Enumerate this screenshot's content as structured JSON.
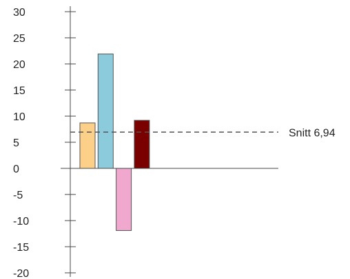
{
  "chart_data": {
    "type": "bar",
    "categories": [
      "",
      "",
      "",
      ""
    ],
    "values": [
      8.7,
      21.9,
      -11.9,
      9.2
    ],
    "colors": [
      "#fdd08a",
      "#8ccbdc",
      "#f0a8cf",
      "#7a0000"
    ],
    "ylim": [
      -20,
      30
    ],
    "yticks": [
      30,
      25,
      20,
      15,
      10,
      5,
      0,
      -5,
      -10,
      -15,
      -20
    ],
    "ytick_labels": [
      "30",
      "25",
      "20",
      "15",
      "10",
      "5",
      "0",
      "-5",
      "-10",
      "-15",
      "-20"
    ],
    "reference_line": {
      "value": 6.94,
      "label": "Snitt 6,94",
      "style": "dashed"
    },
    "grid": false,
    "title": "",
    "xlabel": "",
    "ylabel": ""
  }
}
